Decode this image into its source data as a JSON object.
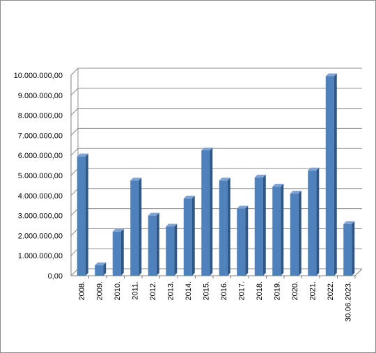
{
  "chart_data": {
    "type": "bar",
    "title": "",
    "xlabel": "",
    "ylabel": "",
    "categories": [
      "2008.",
      "2009.",
      "2010.",
      "2011.",
      "2012.",
      "2013.",
      "2014.",
      "2015.",
      "2016.",
      "2017.",
      "2018.",
      "2019.",
      "2020.",
      "2021.",
      "2022.",
      "30.06.2023."
    ],
    "values": [
      5950000,
      520000,
      2200000,
      4750000,
      3000000,
      2450000,
      3850000,
      6250000,
      4750000,
      3350000,
      4900000,
      4450000,
      4100000,
      5250000,
      9950000,
      2580000
    ],
    "ylim": [
      0,
      10000000
    ],
    "yticks": [
      0,
      1000000,
      2000000,
      3000000,
      4000000,
      5000000,
      6000000,
      7000000,
      8000000,
      9000000,
      10000000
    ],
    "ytick_labels": [
      "0,00",
      "1.000.000,00",
      "2.000.000,00",
      "3.000.000,00",
      "4.000.000,00",
      "5.000.000,00",
      "6.000.000,00",
      "7.000.000,00",
      "8.000.000,00",
      "9.000.000,00",
      "10.000.000,00"
    ],
    "grid": true,
    "legend": "none",
    "style": "3d-column",
    "colors": {
      "bar_front": "#4f81bd",
      "bar_side": "#2f5786",
      "bar_top": "#7ea3d4",
      "grid": "#8c8c8c",
      "axis": "#7f7f7f"
    }
  }
}
